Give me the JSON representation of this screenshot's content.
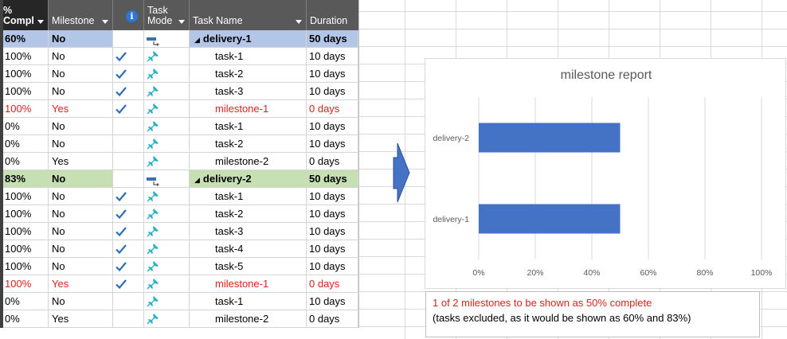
{
  "columns": {
    "pct": "% Compl",
    "pct_line1": "%",
    "pct_line2": "Compl",
    "milestone": "Milestone",
    "info": "i",
    "mode_line1": "Task",
    "mode_line2": "Mode",
    "name": "Task Name",
    "duration": "Duration"
  },
  "rows": [
    {
      "pct": "60%",
      "milestone": "No",
      "check": false,
      "mode": "summary",
      "name": "delivery-1",
      "duration": "50 days",
      "kind": "summary1"
    },
    {
      "pct": "100%",
      "milestone": "No",
      "check": true,
      "mode": "pin",
      "name": "task-1",
      "duration": "10 days",
      "kind": "task"
    },
    {
      "pct": "100%",
      "milestone": "No",
      "check": true,
      "mode": "pin",
      "name": "task-2",
      "duration": "10 days",
      "kind": "task"
    },
    {
      "pct": "100%",
      "milestone": "No",
      "check": true,
      "mode": "pin",
      "name": "task-3",
      "duration": "10 days",
      "kind": "task"
    },
    {
      "pct": "100%",
      "milestone": "Yes",
      "check": true,
      "mode": "pin",
      "name": "milestone-1",
      "duration": "0 days",
      "kind": "red"
    },
    {
      "pct": "0%",
      "milestone": "No",
      "check": false,
      "mode": "pin",
      "name": "task-1",
      "duration": "10 days",
      "kind": "task"
    },
    {
      "pct": "0%",
      "milestone": "No",
      "check": false,
      "mode": "pin",
      "name": "task-2",
      "duration": "10 days",
      "kind": "task"
    },
    {
      "pct": "0%",
      "milestone": "Yes",
      "check": false,
      "mode": "pin",
      "name": "milestone-2",
      "duration": "0 days",
      "kind": "task"
    },
    {
      "pct": "83%",
      "milestone": "No",
      "check": false,
      "mode": "summary",
      "name": "delivery-2",
      "duration": "50 days",
      "kind": "summary2"
    },
    {
      "pct": "100%",
      "milestone": "No",
      "check": true,
      "mode": "pin",
      "name": "task-1",
      "duration": "10 days",
      "kind": "task"
    },
    {
      "pct": "100%",
      "milestone": "No",
      "check": true,
      "mode": "pin",
      "name": "task-2",
      "duration": "10 days",
      "kind": "task"
    },
    {
      "pct": "100%",
      "milestone": "No",
      "check": true,
      "mode": "pin",
      "name": "task-3",
      "duration": "10 days",
      "kind": "task"
    },
    {
      "pct": "100%",
      "milestone": "No",
      "check": true,
      "mode": "pin",
      "name": "task-4",
      "duration": "10 days",
      "kind": "task"
    },
    {
      "pct": "100%",
      "milestone": "No",
      "check": true,
      "mode": "pin",
      "name": "task-5",
      "duration": "10 days",
      "kind": "task"
    },
    {
      "pct": "100%",
      "milestone": "Yes",
      "check": true,
      "mode": "pin",
      "name": "milestone-1",
      "duration": "0 days",
      "kind": "red"
    },
    {
      "pct": "0%",
      "milestone": "No",
      "check": false,
      "mode": "pin",
      "name": "task-1",
      "duration": "10 days",
      "kind": "task"
    },
    {
      "pct": "0%",
      "milestone": "Yes",
      "check": false,
      "mode": "pin",
      "name": "milestone-2",
      "duration": "0 days",
      "kind": "task"
    }
  ],
  "colors": {
    "summary1": "#b4c6e7",
    "summary2": "#c6e0b4",
    "red": "#e0201e",
    "bar": "#4472c4",
    "check": "#2f6db5",
    "pin": "#2ab3c8"
  },
  "icons": {
    "check": "checkmark-icon",
    "pin": "pin-icon",
    "summary": "auto-schedule-icon",
    "info": "info-icon",
    "arrow": "right-arrow-icon"
  },
  "chart_data": {
    "type": "bar",
    "orientation": "horizontal",
    "title": "milestone report",
    "categories": [
      "delivery-2",
      "delivery-1"
    ],
    "values": [
      50,
      50
    ],
    "xlim": [
      0,
      100
    ],
    "xticks": [
      "0%",
      "20%",
      "40%",
      "60%",
      "80%",
      "100%"
    ],
    "grid": true
  },
  "note": {
    "line1": "1 of 2 milestones to be shown as 50% complete",
    "line2": "(tasks excluded, as it would be shown as 60% and 83%)"
  }
}
